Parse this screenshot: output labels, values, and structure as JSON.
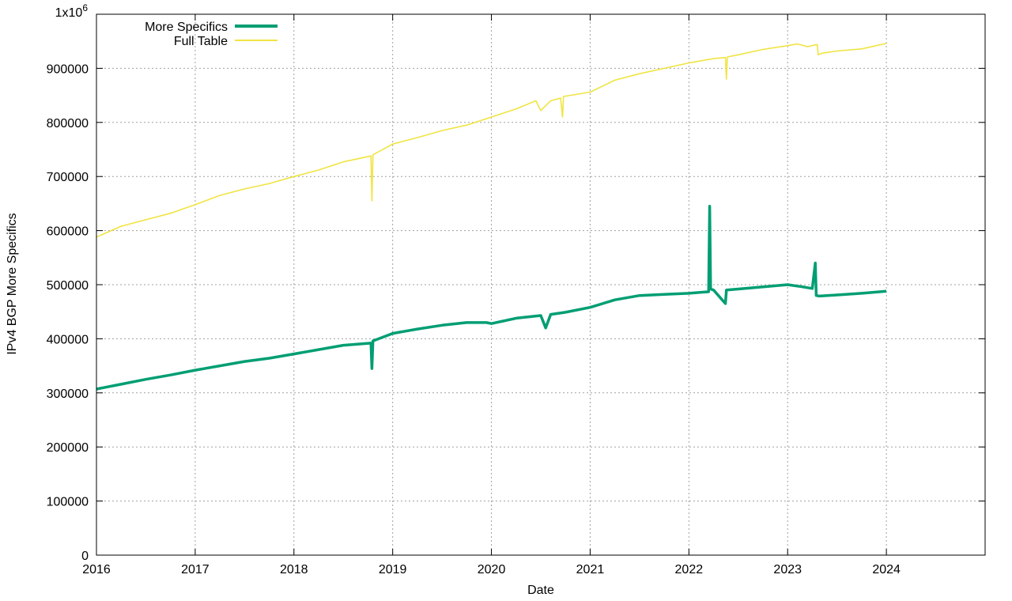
{
  "chart_data": {
    "type": "line",
    "title": "",
    "xlabel": "Date",
    "ylabel": "IPv4 BGP More Specifics",
    "xlim": [
      2016,
      2025
    ],
    "ylim": [
      0,
      1000000
    ],
    "x_ticks": [
      "2016",
      "2017",
      "2018",
      "2019",
      "2020",
      "2021",
      "2022",
      "2023",
      "2024"
    ],
    "y_ticks": [
      {
        "value": 0,
        "label": "0"
      },
      {
        "value": 100000,
        "label": "100000"
      },
      {
        "value": 200000,
        "label": "200000"
      },
      {
        "value": 300000,
        "label": "300000"
      },
      {
        "value": 400000,
        "label": "400000"
      },
      {
        "value": 500000,
        "label": "500000"
      },
      {
        "value": 600000,
        "label": "600000"
      },
      {
        "value": 700000,
        "label": "700000"
      },
      {
        "value": 800000,
        "label": "800000"
      },
      {
        "value": 900000,
        "label": "900000"
      }
    ],
    "y_top_label": {
      "base": "1x10",
      "exp": "6"
    },
    "grid": true,
    "legend_position": "top-left",
    "series": [
      {
        "name": "More Specifics",
        "color": "#009e73",
        "x": [
          2016.0,
          2016.25,
          2016.5,
          2016.75,
          2017.0,
          2017.25,
          2017.5,
          2017.75,
          2018.0,
          2018.25,
          2018.5,
          2018.78,
          2018.79,
          2018.8,
          2019.0,
          2019.25,
          2019.5,
          2019.75,
          2019.95,
          2020.0,
          2020.25,
          2020.5,
          2020.55,
          2020.6,
          2020.75,
          2021.0,
          2021.25,
          2021.5,
          2021.75,
          2022.0,
          2022.2,
          2022.21,
          2022.22,
          2022.25,
          2022.37,
          2022.38,
          2022.5,
          2022.75,
          2023.0,
          2023.15,
          2023.25,
          2023.28,
          2023.29,
          2023.32,
          2023.5,
          2023.75,
          2024.0
        ],
        "y": [
          307000,
          316000,
          325000,
          333000,
          342000,
          350000,
          358000,
          364000,
          372000,
          380000,
          388000,
          392000,
          345000,
          396000,
          410000,
          418000,
          425000,
          430000,
          430000,
          428000,
          438000,
          443000,
          420000,
          445000,
          449000,
          458000,
          472000,
          480000,
          482000,
          484000,
          487000,
          645000,
          492000,
          490000,
          465000,
          490000,
          492000,
          496000,
          500000,
          496000,
          493000,
          540000,
          480000,
          479000,
          481000,
          484000,
          488000
        ]
      },
      {
        "name": "Full Table",
        "color": "#f0e442",
        "x": [
          2016.0,
          2016.25,
          2016.5,
          2016.75,
          2017.0,
          2017.25,
          2017.5,
          2017.75,
          2018.0,
          2018.25,
          2018.5,
          2018.78,
          2018.79,
          2018.8,
          2019.0,
          2019.25,
          2019.5,
          2019.75,
          2020.0,
          2020.25,
          2020.45,
          2020.5,
          2020.6,
          2020.7,
          2020.72,
          2020.73,
          2021.0,
          2021.25,
          2021.5,
          2021.75,
          2022.0,
          2022.25,
          2022.37,
          2022.38,
          2022.39,
          2022.5,
          2022.75,
          2023.0,
          2023.1,
          2023.2,
          2023.3,
          2023.31,
          2023.35,
          2023.5,
          2023.75,
          2024.0
        ],
        "y": [
          588000,
          608000,
          620000,
          632000,
          648000,
          665000,
          677000,
          687000,
          700000,
          712000,
          727000,
          738000,
          655000,
          740000,
          760000,
          772000,
          785000,
          795000,
          810000,
          825000,
          840000,
          822000,
          840000,
          845000,
          810000,
          848000,
          856000,
          878000,
          890000,
          900000,
          910000,
          918000,
          920000,
          880000,
          921000,
          925000,
          935000,
          942000,
          945000,
          940000,
          944000,
          925000,
          928000,
          932000,
          936000,
          946000
        ]
      }
    ]
  }
}
